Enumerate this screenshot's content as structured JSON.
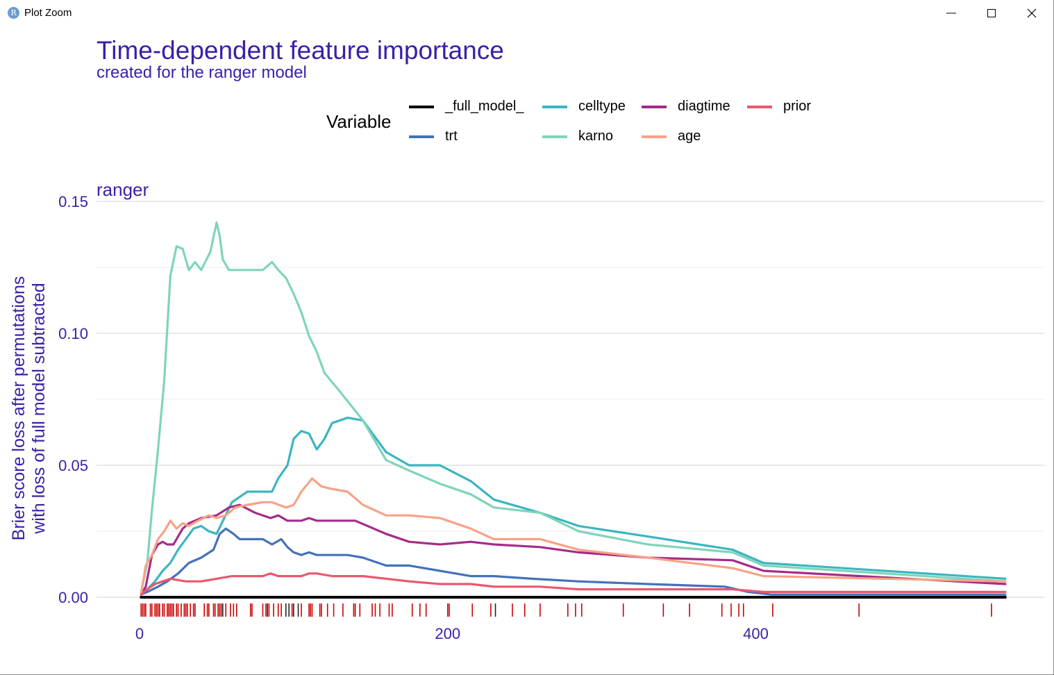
{
  "window": {
    "title": "Plot Zoom",
    "icon_letter": "R",
    "buttons": [
      "minimize-icon",
      "maximize-icon",
      "close-icon"
    ]
  },
  "chart_data": {
    "type": "line",
    "title": "Time-dependent feature importance",
    "subtitle": "created for the ranger model",
    "facet": "ranger",
    "xlabel": "",
    "ylabel_line1": "Brier score loss after permutations",
    "ylabel_line2": "with loss of full model subtracted",
    "xlim": [
      0,
      560
    ],
    "ylim": [
      0,
      0.15
    ],
    "x_ticks": [
      {
        "value": 0,
        "label": "0"
      },
      {
        "value": 200,
        "label": "200"
      },
      {
        "value": 400,
        "label": "400"
      }
    ],
    "y_ticks": [
      {
        "value": 0,
        "label": "0.00"
      },
      {
        "value": 0.05,
        "label": "0.05"
      },
      {
        "value": 0.1,
        "label": "0.10"
      },
      {
        "value": 0.15,
        "label": "0.15"
      }
    ],
    "grid": true,
    "legend": {
      "title": "Variable",
      "placement": "top",
      "items": [
        "_full_model_",
        "trt",
        "celltype",
        "karno",
        "diagtime",
        "age",
        "prior"
      ]
    },
    "series": [
      {
        "name": "_full_model_",
        "color": "#000000",
        "x": [
          1,
          562
        ],
        "y": [
          0,
          0
        ]
      },
      {
        "name": "trt",
        "color": "#4472b8",
        "x": [
          1,
          5,
          12,
          18,
          25,
          32,
          40,
          48,
          52,
          56,
          61,
          65,
          70,
          80,
          86,
          92,
          96,
          100,
          105,
          110,
          115,
          125,
          135,
          145,
          160,
          175,
          195,
          215,
          230,
          255,
          285,
          330,
          380,
          395,
          410,
          562
        ],
        "y": [
          0.001,
          0.002,
          0.004,
          0.006,
          0.009,
          0.013,
          0.015,
          0.018,
          0.024,
          0.026,
          0.024,
          0.022,
          0.022,
          0.022,
          0.02,
          0.022,
          0.019,
          0.017,
          0.016,
          0.017,
          0.016,
          0.016,
          0.016,
          0.015,
          0.012,
          0.012,
          0.01,
          0.008,
          0.008,
          0.007,
          0.006,
          0.005,
          0.004,
          0.002,
          0.001,
          0.001
        ]
      },
      {
        "name": "celltype",
        "color": "#3bb5c1",
        "x": [
          1,
          5,
          10,
          15,
          20,
          25,
          30,
          35,
          40,
          45,
          50,
          55,
          60,
          65,
          70,
          80,
          86,
          90,
          96,
          100,
          105,
          110,
          115,
          120,
          125,
          135,
          145,
          160,
          175,
          195,
          215,
          230,
          260,
          285,
          330,
          385,
          405,
          562
        ],
        "y": [
          0.002,
          0.003,
          0.006,
          0.01,
          0.013,
          0.018,
          0.022,
          0.026,
          0.027,
          0.025,
          0.024,
          0.03,
          0.036,
          0.038,
          0.04,
          0.04,
          0.04,
          0.045,
          0.05,
          0.06,
          0.063,
          0.062,
          0.056,
          0.06,
          0.066,
          0.068,
          0.067,
          0.055,
          0.05,
          0.05,
          0.044,
          0.037,
          0.032,
          0.027,
          0.023,
          0.018,
          0.013,
          0.007
        ]
      },
      {
        "name": "karno",
        "color": "#7fd4bb",
        "x": [
          1,
          5,
          8,
          12,
          16,
          20,
          24,
          28,
          32,
          36,
          40,
          46,
          50,
          52,
          54,
          58,
          70,
          80,
          86,
          90,
          95,
          100,
          105,
          110,
          115,
          120,
          130,
          145,
          160,
          175,
          195,
          215,
          230,
          260,
          285,
          330,
          385,
          405,
          562
        ],
        "y": [
          0.002,
          0.013,
          0.033,
          0.056,
          0.082,
          0.122,
          0.133,
          0.132,
          0.124,
          0.127,
          0.124,
          0.131,
          0.142,
          0.137,
          0.128,
          0.124,
          0.124,
          0.124,
          0.127,
          0.124,
          0.121,
          0.115,
          0.108,
          0.099,
          0.093,
          0.085,
          0.078,
          0.067,
          0.052,
          0.048,
          0.043,
          0.039,
          0.034,
          0.032,
          0.025,
          0.02,
          0.017,
          0.012,
          0.006
        ]
      },
      {
        "name": "diagtime",
        "color": "#a52b8a",
        "x": [
          1,
          4,
          8,
          12,
          15,
          18,
          22,
          28,
          32,
          40,
          50,
          58,
          65,
          75,
          85,
          90,
          96,
          105,
          110,
          115,
          125,
          140,
          160,
          175,
          195,
          215,
          230,
          260,
          285,
          330,
          385,
          405,
          562
        ],
        "y": [
          0.001,
          0.004,
          0.016,
          0.02,
          0.021,
          0.02,
          0.02,
          0.026,
          0.028,
          0.03,
          0.031,
          0.034,
          0.035,
          0.032,
          0.03,
          0.031,
          0.029,
          0.029,
          0.03,
          0.029,
          0.029,
          0.029,
          0.024,
          0.021,
          0.02,
          0.021,
          0.02,
          0.019,
          0.017,
          0.015,
          0.014,
          0.01,
          0.005
        ]
      },
      {
        "name": "age",
        "color": "#f7a286",
        "x": [
          1,
          4,
          8,
          12,
          16,
          20,
          24,
          28,
          32,
          38,
          45,
          50,
          56,
          62,
          70,
          80,
          86,
          95,
          100,
          105,
          112,
          118,
          125,
          135,
          145,
          160,
          175,
          195,
          215,
          230,
          260,
          285,
          330,
          385,
          405,
          562
        ],
        "y": [
          0.001,
          0.012,
          0.016,
          0.022,
          0.025,
          0.029,
          0.026,
          0.028,
          0.027,
          0.029,
          0.031,
          0.03,
          0.031,
          0.034,
          0.035,
          0.036,
          0.036,
          0.034,
          0.035,
          0.04,
          0.045,
          0.042,
          0.041,
          0.04,
          0.035,
          0.031,
          0.031,
          0.03,
          0.026,
          0.022,
          0.022,
          0.018,
          0.015,
          0.011,
          0.008,
          0.006
        ]
      },
      {
        "name": "prior",
        "color": "#e85870",
        "x": [
          1,
          5,
          10,
          15,
          20,
          30,
          40,
          50,
          60,
          70,
          80,
          85,
          90,
          100,
          105,
          110,
          115,
          125,
          135,
          145,
          160,
          175,
          195,
          215,
          230,
          260,
          285,
          330,
          385,
          405,
          562
        ],
        "y": [
          0.001,
          0.003,
          0.005,
          0.006,
          0.007,
          0.006,
          0.006,
          0.007,
          0.008,
          0.008,
          0.008,
          0.009,
          0.008,
          0.008,
          0.008,
          0.009,
          0.009,
          0.008,
          0.008,
          0.008,
          0.007,
          0.006,
          0.005,
          0.005,
          0.004,
          0.004,
          0.003,
          0.003,
          0.003,
          0.002,
          0.002
        ]
      }
    ],
    "rug": {
      "color": "#cc0000",
      "dark_color": "#222222",
      "times": [
        1,
        2,
        3,
        4,
        7,
        8,
        10,
        11,
        12,
        13,
        15,
        16,
        18,
        19,
        20,
        21,
        22,
        24,
        25,
        27,
        29,
        30,
        31,
        33,
        35,
        36,
        42,
        44,
        45,
        48,
        49,
        51,
        52,
        53,
        54,
        56,
        59,
        61,
        63,
        72,
        73,
        80,
        82,
        83,
        84,
        87,
        90,
        92,
        95,
        97,
        99,
        100,
        103,
        105,
        110,
        111,
        112,
        117,
        118,
        122,
        126,
        132,
        139,
        140,
        143,
        151,
        153,
        156,
        162,
        164,
        177,
        182,
        186,
        200,
        201,
        216,
        228,
        231,
        242,
        250,
        260,
        278,
        283,
        287,
        314,
        340,
        357,
        378,
        384,
        389,
        392,
        411,
        467,
        553
      ],
      "dark_times": [
        54,
        83,
        95,
        97,
        100,
        103,
        231
      ]
    }
  }
}
